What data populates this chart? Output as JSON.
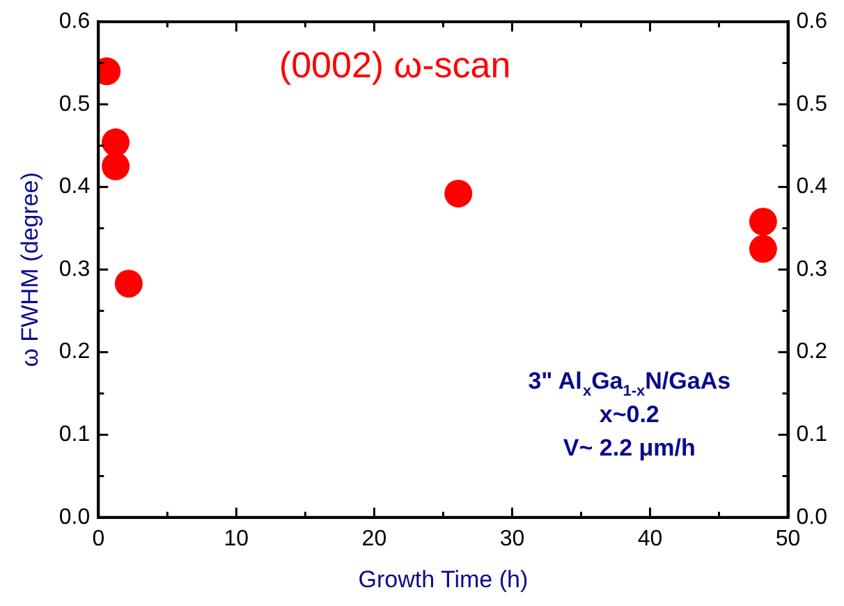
{
  "chart_data": {
    "type": "scatter",
    "xlabel": "Growth Time (h)",
    "ylabel": "ω FWHM (degree)",
    "x": [
      0.6,
      1.25,
      1.25,
      2.2,
      26.1,
      48.2,
      48.2
    ],
    "series": [
      {
        "color": "#ff0000",
        "values": [
          0.54,
          0.454,
          0.425,
          0.283,
          0.392,
          0.358,
          0.325
        ]
      }
    ],
    "marker": "circle",
    "grid": false,
    "legend": false,
    "xlim": [
      0,
      50
    ],
    "xticks": [
      0,
      {
        "value": 5,
        "label": null
      },
      10,
      {
        "value": 15,
        "label": null
      },
      20,
      {
        "value": 25,
        "label": null
      },
      30,
      {
        "value": 35,
        "label": null
      },
      40,
      {
        "value": 45,
        "label": null
      },
      50
    ],
    "ylim": [
      0,
      0.6
    ],
    "yticks": [
      {
        "value": 0,
        "label": "0.0"
      },
      {
        "value": 0.05,
        "label": null
      },
      0.1,
      {
        "value": 0.15,
        "label": null
      },
      0.2,
      {
        "value": 0.25,
        "label": null
      },
      0.3,
      {
        "value": 0.35,
        "label": null
      },
      0.4,
      {
        "value": 0.45,
        "label": null
      },
      0.5,
      {
        "value": 0.55,
        "label": null
      },
      0.6
    ],
    "y2lim": [
      0,
      0.6
    ],
    "y2ticks": [
      {
        "value": 0,
        "label": "0.0"
      },
      {
        "value": 0.05,
        "label": null
      },
      0.1,
      {
        "value": 0.15,
        "label": null
      },
      0.2,
      {
        "value": 0.25,
        "label": null
      },
      0.3,
      {
        "value": 0.35,
        "label": null
      },
      0.4,
      {
        "value": 0.45,
        "label": null
      },
      0.5,
      {
        "value": 0.55,
        "label": null
      },
      0.6
    ],
    "annotations": [
      "(0002) ω-scan",
      "3\" Al$_{x}$Ga$_{1-x}$N/GaAs",
      "x~0.2",
      "V~ 2.2 μm/h"
    ]
  }
}
